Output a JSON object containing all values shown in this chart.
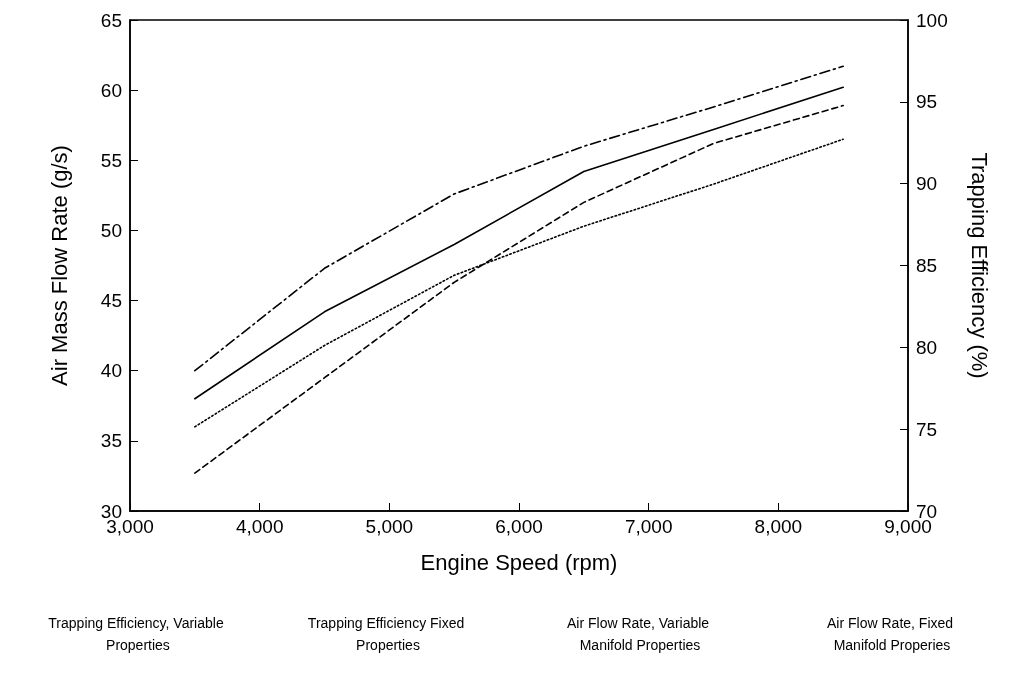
{
  "chart_data": {
    "type": "line",
    "xlabel": "Engine Speed (rpm)",
    "ylabel": "Air Mass Flow Rate (g/s)",
    "y2label": "Trapping Efficiency (%)",
    "x": [
      3500,
      4500,
      5500,
      6500,
      7500,
      8500
    ],
    "series": [
      {
        "color": "#000000",
        "line_style": "dashdot",
        "values": [
          40,
          47.3,
          52.6,
          56,
          58.8,
          61.7
        ]
      },
      {
        "color": "#000000",
        "line_style": "solid",
        "values": [
          38,
          44.2,
          49,
          54.2,
          57.2,
          60.2
        ]
      },
      {
        "color": "#000000",
        "line_style": "dashed",
        "values": [
          32.7,
          39.5,
          46.3,
          52,
          56.2,
          58.9
        ]
      },
      {
        "color": "#000000",
        "line_style": "dotted",
        "values": [
          36,
          41.8,
          46.8,
          50.3,
          53.3,
          56.5
        ]
      }
    ],
    "xlim": [
      3000,
      9000
    ],
    "xticks": [
      {
        "value": 3000,
        "label": "3,000"
      },
      {
        "value": 4000,
        "label": "4,000"
      },
      {
        "value": 5000,
        "label": "5,000"
      },
      {
        "value": 6000,
        "label": "6,000"
      },
      {
        "value": 7000,
        "label": "7,000"
      },
      {
        "value": 8000,
        "label": "8,000"
      },
      {
        "value": 9000,
        "label": "9,000"
      }
    ],
    "ylim": [
      30,
      65
    ],
    "yticks": [
      30,
      35,
      40,
      45,
      50,
      55,
      60,
      65
    ],
    "y2lim": [
      70,
      100
    ],
    "y2ticks": [
      70,
      75,
      80,
      85,
      90,
      95,
      100
    ],
    "grid": false,
    "marker": "none",
    "annotations": [
      "Trapping Efficiency, Variable Properties",
      "Trapping Efficiency Fixed Properties",
      "Air Flow Rate, Variable Manifold Properties",
      "Air Flow Rate, Fixed Manifold Properies"
    ]
  }
}
